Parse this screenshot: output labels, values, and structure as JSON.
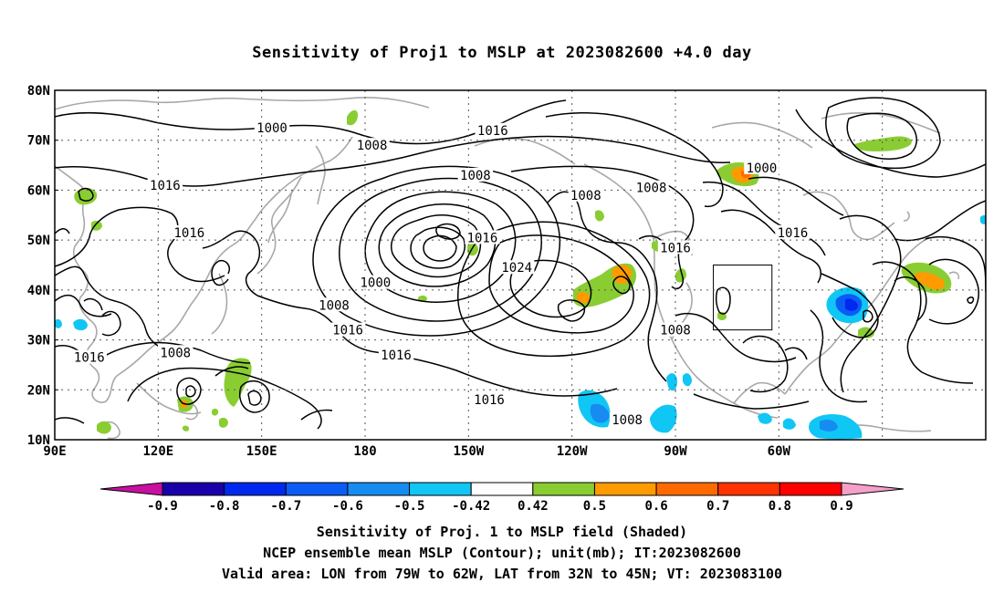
{
  "title": "Sensitivity of Proj1 to MSLP at 2023082600 +4.0 day",
  "map": {
    "lat_labels": [
      "80N",
      "70N",
      "60N",
      "50N",
      "40N",
      "30N",
      "20N",
      "10N"
    ],
    "lon_labels": [
      "90E",
      "120E",
      "150E",
      "180",
      "150W",
      "120W",
      "90W",
      "60W"
    ],
    "contour_labels": [
      {
        "text": "1000",
        "lon": 153,
        "lat": 72.5
      },
      {
        "text": "1008",
        "lon": -178,
        "lat": 69
      },
      {
        "text": "1016",
        "lon": -143,
        "lat": 72
      },
      {
        "text": "1008",
        "lon": -148,
        "lat": 63
      },
      {
        "text": "1008",
        "lon": -116,
        "lat": 59
      },
      {
        "text": "1008",
        "lon": -97,
        "lat": 60.5
      },
      {
        "text": "1000",
        "lon": -65,
        "lat": 64.5
      },
      {
        "text": "1016",
        "lon": 122,
        "lat": 61
      },
      {
        "text": "1016",
        "lon": 129,
        "lat": 51.5
      },
      {
        "text": "1016",
        "lon": -56,
        "lat": 51.5
      },
      {
        "text": "1016",
        "lon": -146,
        "lat": 50.5
      },
      {
        "text": "1016",
        "lon": -90,
        "lat": 48.5
      },
      {
        "text": "1024",
        "lon": -136,
        "lat": 44.5
      },
      {
        "text": "1000",
        "lon": -177,
        "lat": 41.5
      },
      {
        "text": "1008",
        "lon": 171,
        "lat": 37
      },
      {
        "text": "1016",
        "lon": 175,
        "lat": 32
      },
      {
        "text": "1008",
        "lon": -90,
        "lat": 32
      },
      {
        "text": "1016",
        "lon": -171,
        "lat": 27
      },
      {
        "text": "1016",
        "lon": 100,
        "lat": 26.5
      },
      {
        "text": "1008",
        "lon": 125,
        "lat": 27.5
      },
      {
        "text": "1016",
        "lon": -144,
        "lat": 18
      },
      {
        "text": "1008",
        "lon": -104,
        "lat": 14
      }
    ],
    "valid_box": {
      "lon_min": -79,
      "lon_max": -62,
      "lat_min": 32,
      "lat_max": 45
    }
  },
  "colorbar": {
    "tick_labels": [
      "-0.9",
      "-0.8",
      "-0.7",
      "-0.6",
      "-0.5",
      "-0.42",
      "0.42",
      "0.5",
      "0.6",
      "0.7",
      "0.8",
      "0.9"
    ],
    "colors": [
      "#1a00a8",
      "#0028ee",
      "#0a5cf5",
      "#168cf0",
      "#10c6f5",
      "#ffffff",
      "#8acd32",
      "#ff9a00",
      "#ff6a00",
      "#ff3200",
      "#ff0000"
    ],
    "low_arrow_color": "#c80fa0",
    "high_arrow_color": "#f5a0c8"
  },
  "captions": {
    "line1": "Sensitivity of Proj. 1 to MSLP field (Shaded)",
    "line2": "NCEP ensemble mean MSLP (Contour); unit(mb); IT:2023082600",
    "line3": "Valid area: LON from 79W to 62W, LAT from 32N to 45N; VT: 2023083100"
  }
}
